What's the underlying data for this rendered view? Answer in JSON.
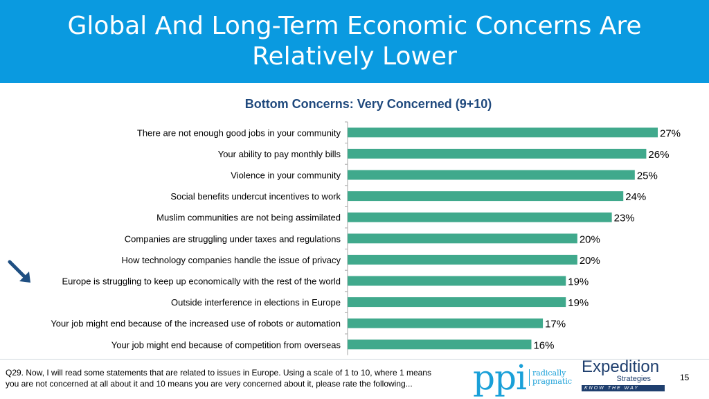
{
  "slide": {
    "title": "Global And Long-Term Economic Concerns Are Relatively Lower",
    "question": "Q29. Now, I will read some statements that are related to issues in Europe.  Using a scale of 1 to 10, where 1 means you are not concerned at all about it and 10 means you are very concerned about it, please rate the following...",
    "page_number": "15",
    "logos": {
      "ppi_mark": "ppi",
      "ppi_tagline": "radically pragmatic",
      "expedition_name": "Expedition",
      "expedition_sub": "Strategies",
      "expedition_tagline": "KNOW THE WAY"
    },
    "colors": {
      "header": "#0a9ae0",
      "bar": "#40a98c",
      "title": "#1f497d",
      "arrow": "#1f4f82"
    },
    "highlight_arrow_icon": "arrow-down-right-icon",
    "highlighted_category": "Europe is struggling to keep up economically with the rest of the world"
  },
  "chart_data": {
    "type": "bar",
    "orientation": "horizontal",
    "title": "Bottom Concerns: Very Concerned (9+10)",
    "categories": [
      "There are not enough good jobs in your community",
      "Your ability to pay monthly bills",
      "Violence in your community",
      "Social benefits undercut incentives to work",
      "Muslim communities are not being assimilated",
      "Companies are struggling under taxes and regulations",
      "How technology companies handle the issue of privacy",
      "Europe is struggling to keep up economically with the rest of the world",
      "Outside interference in elections in Europe",
      "Your job might end because of the increased use of robots or automation",
      "Your job might end because of competition from overseas"
    ],
    "values": [
      27,
      26,
      25,
      24,
      23,
      20,
      20,
      19,
      19,
      17,
      16
    ],
    "value_labels": [
      "27%",
      "26%",
      "25%",
      "24%",
      "23%",
      "20%",
      "20%",
      "19%",
      "19%",
      "17%",
      "16%"
    ],
    "xlim": [
      0,
      27
    ],
    "grid": false,
    "legend": "none"
  }
}
